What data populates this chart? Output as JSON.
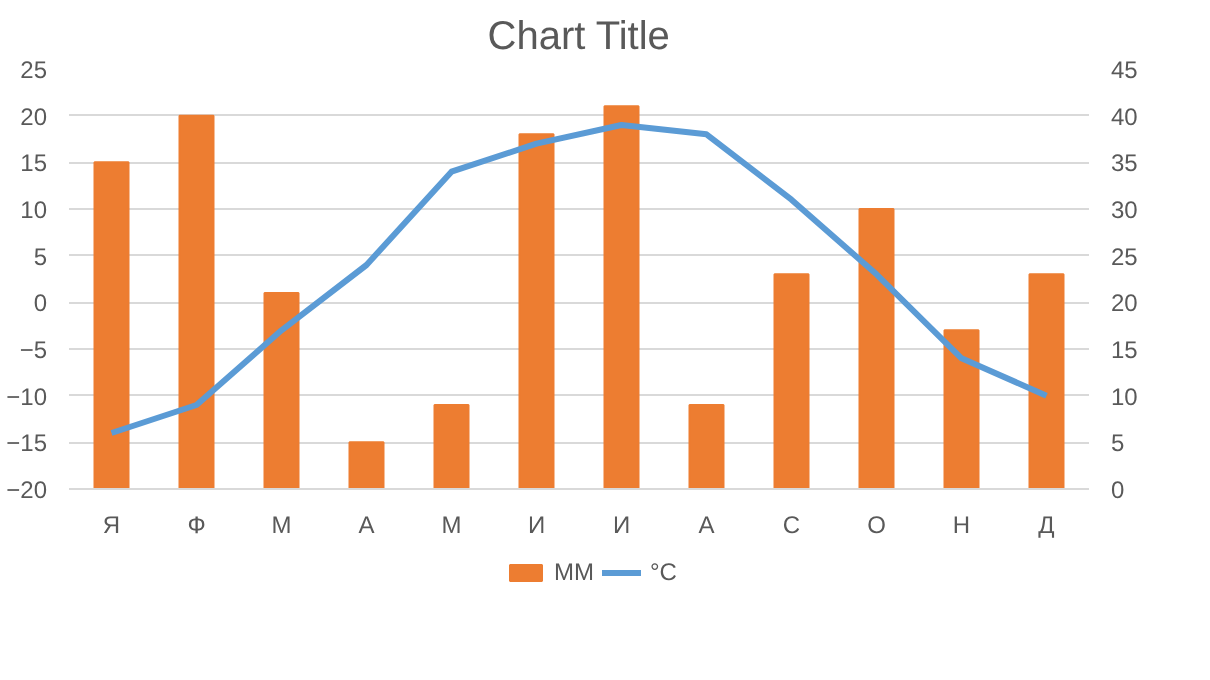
{
  "chart_data": {
    "type": "bar",
    "title": "Chart Title",
    "categories": [
      "Я",
      "Ф",
      "М",
      "А",
      "М",
      "И",
      "И",
      "А",
      "С",
      "О",
      "Н",
      "Д"
    ],
    "series": [
      {
        "name": "ММ",
        "axis": "y2",
        "color": "#ed7d31",
        "values": [
          35,
          40,
          21,
          5,
          9,
          38,
          41,
          9,
          23,
          30,
          17,
          23
        ]
      },
      {
        "name": "°C",
        "type": "line",
        "color": "#5b9bd5",
        "values": [
          -14,
          -11,
          -3,
          4,
          14,
          17,
          19,
          18,
          11,
          3,
          -6,
          -10
        ]
      }
    ],
    "ylim": [
      -20,
      25
    ],
    "yticks": [
      -20,
      -15,
      -10,
      -5,
      0,
      5,
      10,
      15,
      20,
      25
    ],
    "y2lim": [
      0,
      45
    ],
    "y2ticks": [
      0,
      5,
      10,
      15,
      20,
      25,
      30,
      35,
      40,
      45
    ],
    "grid": "y",
    "legend": "bottom"
  }
}
